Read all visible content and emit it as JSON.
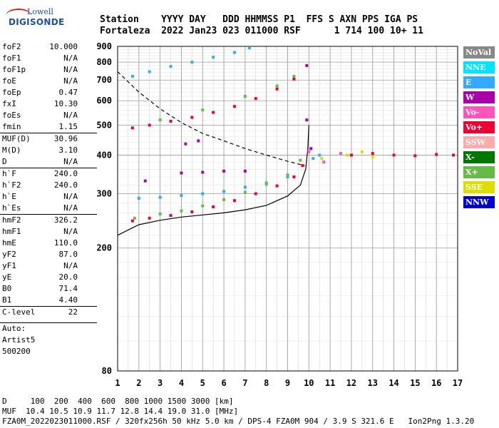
{
  "logo": {
    "top": "Lowell",
    "bottom": "DIGISONDE"
  },
  "header": {
    "line1": "Station    YYYY DAY   DDD HHMMSS P1  FFS S AXN PPS IGA PS",
    "line2": "Fortaleza  2022 Jan23 023 011000 RSF      1 714 100 10+ 11"
  },
  "params": [
    {
      "label": "foF2",
      "value": "10.000"
    },
    {
      "label": "foF1",
      "value": "N/A"
    },
    {
      "label": "foF1p",
      "value": "N/A"
    },
    {
      "label": "foE",
      "value": "N/A"
    },
    {
      "label": "foEp",
      "value": "0.47"
    },
    {
      "label": "fxI",
      "value": "10.30"
    },
    {
      "label": "foEs",
      "value": "N/A"
    },
    {
      "label": "fmin",
      "value": "1.15"
    },
    {
      "label": "MUF(D)",
      "value": "30.96",
      "sep": true
    },
    {
      "label": "M(D)",
      "value": "3.10"
    },
    {
      "label": "D",
      "value": "N/A"
    },
    {
      "label": "h`F",
      "value": "240.0",
      "sep": true
    },
    {
      "label": "h`F2",
      "value": "240.0"
    },
    {
      "label": "h`E",
      "value": "N/A"
    },
    {
      "label": "h`Es",
      "value": "N/A"
    },
    {
      "label": "hmF2",
      "value": "326.2",
      "sep": true
    },
    {
      "label": "hmF1",
      "value": "N/A"
    },
    {
      "label": "hmE",
      "value": "110.0"
    },
    {
      "label": "yF2",
      "value": "87.0"
    },
    {
      "label": "yF1",
      "value": "N/A"
    },
    {
      "label": "yE",
      "value": "20.0"
    },
    {
      "label": "B0",
      "value": "71.4"
    },
    {
      "label": "B1",
      "value": "4.40"
    },
    {
      "label": "C-level",
      "value": "22",
      "sep": true
    }
  ],
  "auto": [
    "Auto:",
    "Artist5",
    "500200"
  ],
  "legend": [
    {
      "label": "NoVal",
      "color": "#888888"
    },
    {
      "label": "NNE",
      "color": "#00e5ff"
    },
    {
      "label": "E",
      "color": "#33aaff"
    },
    {
      "label": "W",
      "color": "#aa00aa"
    },
    {
      "label": "Vo-",
      "color": "#ff55bb"
    },
    {
      "label": "Vo+",
      "color": "#ee0033"
    },
    {
      "label": "SSW",
      "color": "#ffaaaa"
    },
    {
      "label": "X-",
      "color": "#007700"
    },
    {
      "label": "X+",
      "color": "#66bb44"
    },
    {
      "label": "SSE",
      "color": "#dddd00"
    },
    {
      "label": "NNW",
      "color": "#0000cc"
    }
  ],
  "footer": {
    "line1": "D     100  200  400  600  800 1000 1500 3000 [km]",
    "line2": "MUF  10.4 10.5 10.9 11.7 12.8 14.4 19.0 31.0 [MHz]",
    "line3": "FZA0M_2022023011000.RSF / 320fx256h 50 kHz 5.0 km / DPS-4 FZA0M 904 / 3.9 S 321.6 E   Ion2Png 1.3.20"
  },
  "chart_data": {
    "type": "scatter",
    "xlim": [
      1,
      17
    ],
    "ylim": [
      80,
      900
    ],
    "y_scale": "log",
    "x_ticks": [
      1,
      2,
      3,
      4,
      5,
      6,
      7,
      8,
      9,
      10,
      11,
      12,
      13,
      14,
      15,
      16,
      17
    ],
    "y_ticks": [
      80,
      200,
      300,
      400,
      500,
      600,
      700,
      800,
      900
    ],
    "grid": true,
    "series": [
      {
        "name": "Vo+",
        "color": "#ee0033",
        "points": [
          [
            1.7,
            245
          ],
          [
            2.5,
            250
          ],
          [
            3.5,
            255
          ],
          [
            4.5,
            262
          ],
          [
            5.5,
            272
          ],
          [
            6.5,
            285
          ],
          [
            7.5,
            300
          ],
          [
            8.5,
            318
          ],
          [
            9.3,
            340
          ],
          [
            9.7,
            370
          ],
          [
            1.7,
            490
          ],
          [
            2.5,
            500
          ],
          [
            3.5,
            515
          ],
          [
            4.5,
            530
          ],
          [
            5.5,
            550
          ],
          [
            6.5,
            575
          ],
          [
            7.5,
            610
          ],
          [
            8.5,
            655
          ],
          [
            9.3,
            705
          ],
          [
            12,
            400
          ],
          [
            13,
            405
          ],
          [
            14,
            400
          ],
          [
            15,
            398
          ],
          [
            16,
            402
          ],
          [
            16.8,
            400
          ]
        ]
      },
      {
        "name": "E",
        "color": "#33aaff",
        "points": [
          [
            2,
            290
          ],
          [
            3,
            292
          ],
          [
            4,
            296
          ],
          [
            5,
            300
          ],
          [
            6,
            305
          ],
          [
            7,
            315
          ],
          [
            8,
            325
          ],
          [
            9,
            340
          ],
          [
            1.7,
            720
          ],
          [
            2.5,
            745
          ],
          [
            3.5,
            775
          ],
          [
            4.5,
            800
          ],
          [
            5.5,
            830
          ],
          [
            6.5,
            860
          ],
          [
            7.2,
            890
          ],
          [
            10.2,
            390
          ],
          [
            10.5,
            400
          ]
        ]
      },
      {
        "name": "X+",
        "color": "#66bb44",
        "points": [
          [
            1.8,
            250
          ],
          [
            3,
            258
          ],
          [
            4,
            264
          ],
          [
            5,
            274
          ],
          [
            6,
            287
          ],
          [
            7,
            303
          ],
          [
            8,
            322
          ],
          [
            9,
            345
          ],
          [
            9.6,
            385
          ],
          [
            3,
            520
          ],
          [
            5,
            560
          ],
          [
            7,
            620
          ],
          [
            8.5,
            670
          ],
          [
            9.3,
            720
          ]
        ]
      },
      {
        "name": "W",
        "color": "#aa00aa",
        "points": [
          [
            2.3,
            330
          ],
          [
            4,
            350
          ],
          [
            5,
            352
          ],
          [
            6,
            355
          ],
          [
            7,
            355
          ],
          [
            4.2,
            435
          ],
          [
            4.8,
            445
          ],
          [
            9.9,
            520
          ],
          [
            9.9,
            780
          ],
          [
            10.1,
            420
          ]
        ]
      },
      {
        "name": "SSE",
        "color": "#dddd00",
        "points": [
          [
            10.6,
            390
          ],
          [
            11.8,
            400
          ],
          [
            12.5,
            410
          ],
          [
            13,
            395
          ]
        ]
      },
      {
        "name": "Vo-",
        "color": "#ff55bb",
        "points": [
          [
            10,
            410
          ],
          [
            10.7,
            380
          ],
          [
            11.5,
            405
          ]
        ]
      }
    ],
    "lines": [
      {
        "name": "profile",
        "style": "solid",
        "points": [
          [
            1,
            220
          ],
          [
            2,
            238
          ],
          [
            3,
            246
          ],
          [
            4,
            252
          ],
          [
            5,
            256
          ],
          [
            6,
            260
          ],
          [
            7,
            266
          ],
          [
            8,
            275
          ],
          [
            9,
            295
          ],
          [
            9.6,
            320
          ],
          [
            9.85,
            360
          ],
          [
            9.95,
            420
          ],
          [
            10,
            500
          ]
        ]
      },
      {
        "name": "MUF",
        "style": "dashed",
        "points": [
          [
            1,
            745
          ],
          [
            2,
            640
          ],
          [
            3,
            565
          ],
          [
            4,
            510
          ],
          [
            5,
            470
          ],
          [
            6,
            445
          ],
          [
            7,
            420
          ],
          [
            8,
            400
          ],
          [
            9,
            382
          ],
          [
            9.8,
            370
          ]
        ]
      }
    ]
  }
}
